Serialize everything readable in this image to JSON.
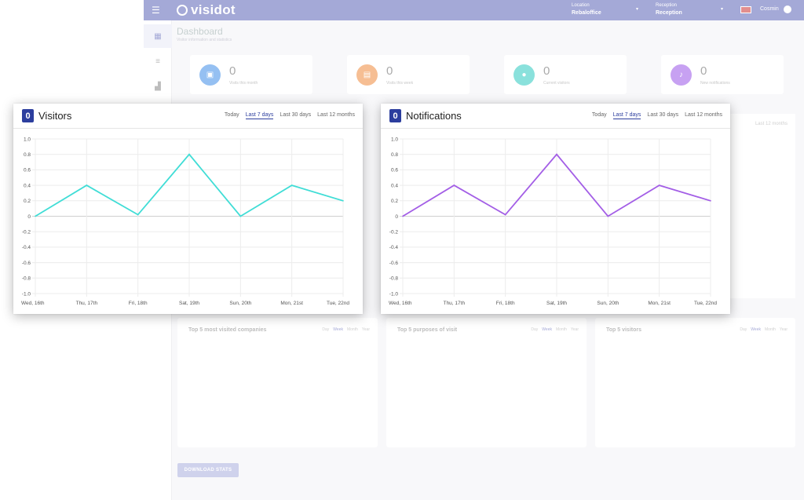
{
  "background": {
    "topbar": {
      "menu_icon": "hamburger-icon",
      "brand": "visidot",
      "location_label": "Location",
      "location_value": "Rebaloffice",
      "reception_label": "Reception",
      "reception_value": "Reception",
      "user_name": "Cosmin"
    },
    "sidebar": {
      "items": [
        {
          "icon": "dashboard-icon",
          "glyph": "▦"
        },
        {
          "icon": "filter-icon",
          "glyph": "≡"
        },
        {
          "icon": "building-icon",
          "glyph": "▟"
        }
      ]
    },
    "dashboard": {
      "title": "Dashboard",
      "subtitle": "Visitor information and statistics"
    },
    "stats": [
      {
        "value": "0",
        "label": "Visits this month",
        "color": "#3f8ee8",
        "icon": "calendar-icon",
        "glyph": "▣"
      },
      {
        "value": "0",
        "label": "Visits this week",
        "color": "#f08a3c",
        "icon": "card-icon",
        "glyph": "▤"
      },
      {
        "value": "0",
        "label": "Current visitors",
        "color": "#2cc9c1",
        "icon": "person-icon",
        "glyph": "●"
      },
      {
        "value": "0",
        "label": "New notifications",
        "color": "#9b55e8",
        "icon": "bell-icon",
        "glyph": "♪"
      }
    ],
    "panels": [
      {
        "tabs": "Last 12 months"
      },
      {
        "tabs": "Last 12 months"
      }
    ],
    "bottom_cards": [
      {
        "title": "Top 5 most visited companies",
        "tabs": [
          "Day",
          "Week",
          "Month",
          "Year"
        ],
        "selected": 1
      },
      {
        "title": "Top 5 purposes of visit",
        "tabs": [
          "Day",
          "Week",
          "Month",
          "Year"
        ],
        "selected": 1
      },
      {
        "title": "Top 5 visitors",
        "tabs": [
          "Day",
          "Week",
          "Month",
          "Year"
        ],
        "selected": 1
      }
    ],
    "download_button": "DOWNLOAD STATS"
  },
  "visitors_card": {
    "count": "0",
    "title": "Visitors",
    "tabs": [
      "Today",
      "Last 7 days",
      "Last 30 days",
      "Last 12 months"
    ],
    "selected_tab": 1
  },
  "notifications_card": {
    "count": "0",
    "title": "Notifications",
    "tabs": [
      "Today",
      "Last 7 days",
      "Last 30 days",
      "Last 12 months"
    ],
    "selected_tab": 1
  },
  "chart_data": [
    {
      "type": "line",
      "x": [
        "Wed, 16th",
        "Thu, 17th",
        "Fri, 18th",
        "Sat, 19th",
        "Sun, 20th",
        "Mon, 21st",
        "Tue, 22nd"
      ],
      "series": [
        {
          "values": [
            0,
            0.4,
            0.02,
            0.8,
            0,
            0.4,
            0.2
          ],
          "color": "#40ddd6"
        }
      ],
      "ylim": [
        -1,
        1
      ],
      "yticks": [
        "1.0",
        "0.8",
        "0.6",
        "0.4",
        "0.2",
        "0",
        "-0.2",
        "-0.4",
        "-0.6",
        "-0.8",
        "-1.0"
      ],
      "grid": true
    },
    {
      "type": "line",
      "x": [
        "Wed, 16th",
        "Thu, 17th",
        "Fri, 18th",
        "Sat, 19th",
        "Sun, 20th",
        "Mon, 21st",
        "Tue, 22nd"
      ],
      "series": [
        {
          "values": [
            0,
            0.4,
            0.02,
            0.8,
            0,
            0.4,
            0.2
          ],
          "color": "#a35ee6"
        }
      ],
      "ylim": [
        -1,
        1
      ],
      "yticks": [
        "1.0",
        "0.8",
        "0.6",
        "0.4",
        "0.2",
        "0",
        "-0.2",
        "-0.4",
        "-0.6",
        "-0.8",
        "-1.0"
      ],
      "grid": true
    }
  ]
}
